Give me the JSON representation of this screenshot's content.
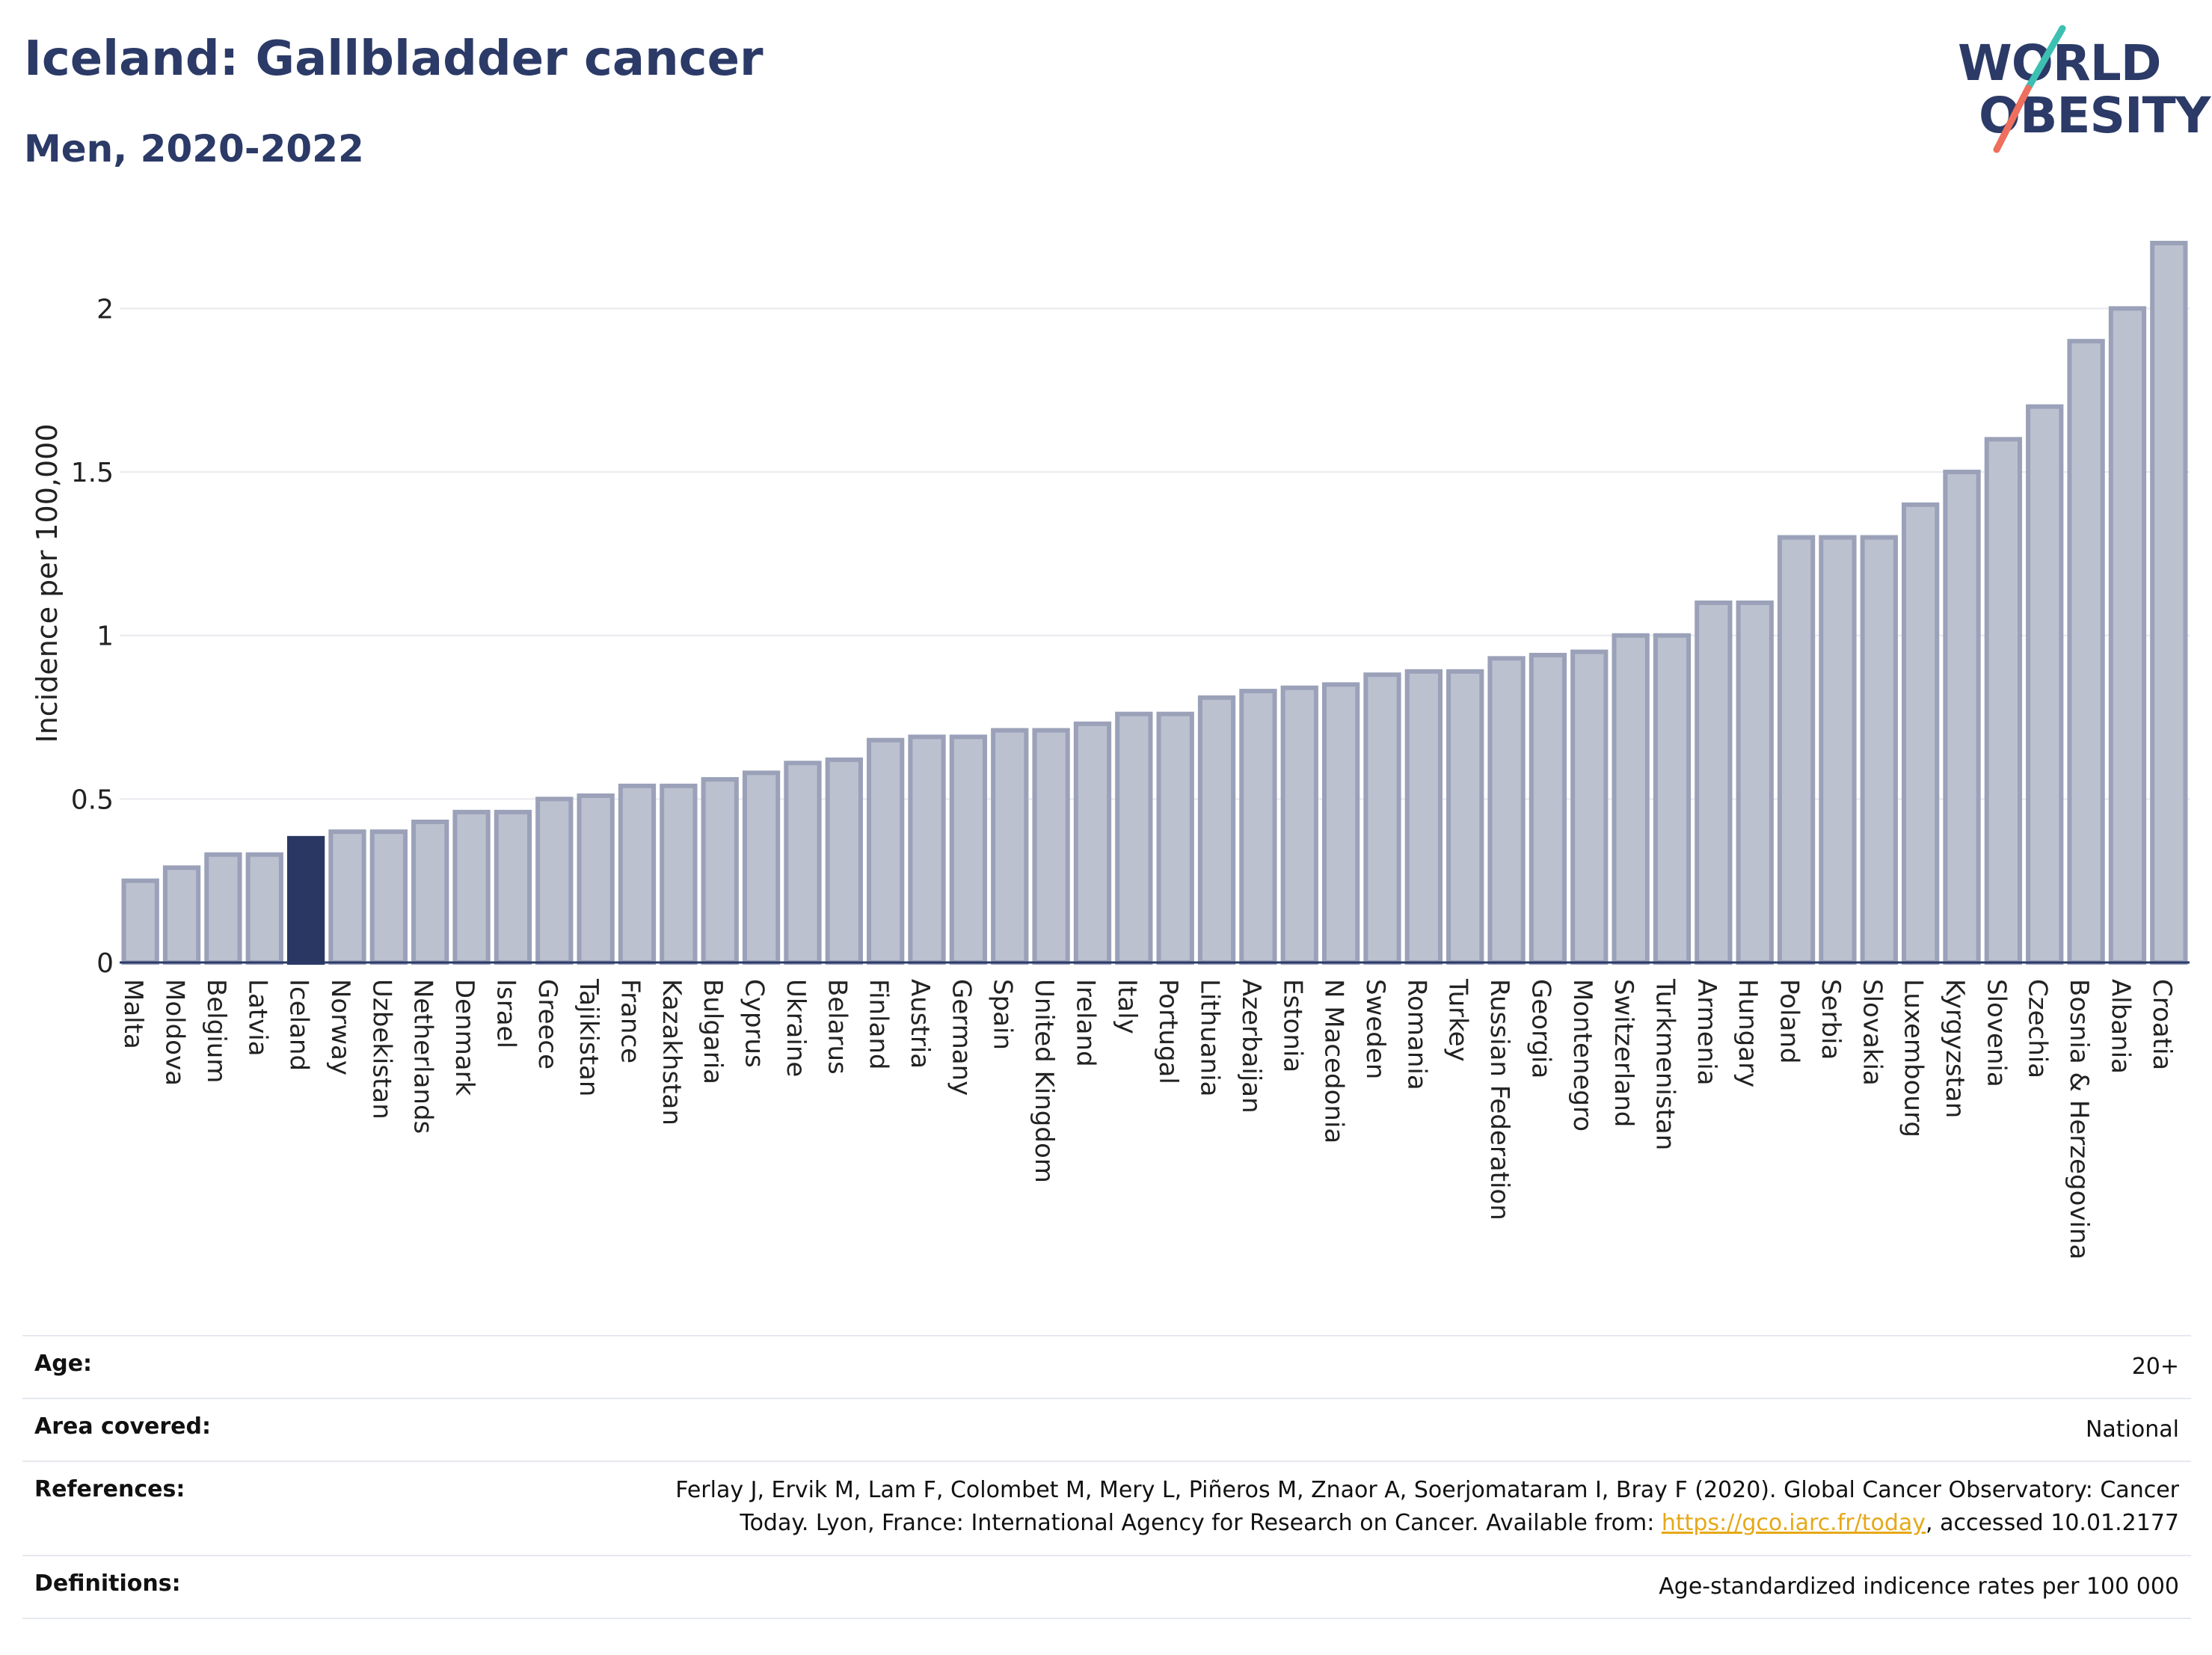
{
  "header": {
    "title": "Iceland: Gallbladder cancer",
    "subtitle": "Men, 2020-2022"
  },
  "logo": {
    "line1": "WORLD",
    "line2": "OBESITY"
  },
  "colors": {
    "bar": "#bcc1d0",
    "bar_border": "#9aa1b8",
    "highlight": "#2b3763",
    "logo_teal": "#3cc0b2",
    "logo_coral": "#ee6f5d",
    "link": "#e6a817"
  },
  "chart_data": {
    "type": "bar",
    "title": "Iceland: Gallbladder cancer",
    "subtitle": "Men, 2020-2022",
    "ylabel": "Incidence per 100,000",
    "xlabel": "",
    "ylim": [
      0,
      2.2
    ],
    "yticks": [
      0,
      0.5,
      1,
      1.5,
      2
    ],
    "ytick_labels": [
      "0",
      "0.5",
      "1",
      "1.5",
      "2"
    ],
    "grid": true,
    "highlight": "Iceland",
    "categories": [
      "Malta",
      "Moldova",
      "Belgium",
      "Latvia",
      "Iceland",
      "Norway",
      "Uzbekistan",
      "Netherlands",
      "Denmark",
      "Israel",
      "Greece",
      "Tajikistan",
      "France",
      "Kazakhstan",
      "Bulgaria",
      "Cyprus",
      "Ukraine",
      "Belarus",
      "Finland",
      "Austria",
      "Germany",
      "Spain",
      "United Kingdom",
      "Ireland",
      "Italy",
      "Portugal",
      "Lithuania",
      "Azerbaijan",
      "Estonia",
      "N Macedonia",
      "Sweden",
      "Romania",
      "Turkey",
      "Russian Federation",
      "Georgia",
      "Montenegro",
      "Switzerland",
      "Turkmenistan",
      "Armenia",
      "Hungary",
      "Poland",
      "Serbia",
      "Slovakia",
      "Luxembourg",
      "Kyrgyzstan",
      "Slovenia",
      "Czechia",
      "Bosnia & Herzegovina",
      "Albania",
      "Croatia"
    ],
    "values": [
      0.25,
      0.29,
      0.33,
      0.33,
      0.38,
      0.4,
      0.4,
      0.43,
      0.46,
      0.46,
      0.5,
      0.51,
      0.54,
      0.54,
      0.56,
      0.58,
      0.61,
      0.62,
      0.68,
      0.69,
      0.69,
      0.71,
      0.71,
      0.73,
      0.76,
      0.76,
      0.81,
      0.83,
      0.84,
      0.85,
      0.88,
      0.89,
      0.89,
      0.93,
      0.94,
      0.95,
      1.0,
      1.0,
      1.1,
      1.1,
      1.3,
      1.3,
      1.3,
      1.4,
      1.5,
      1.6,
      1.7,
      1.9,
      2.0,
      2.2
    ]
  },
  "meta": {
    "age": {
      "label": "Age:",
      "value": "20+"
    },
    "area": {
      "label": "Area covered:",
      "value": "National"
    },
    "references": {
      "label": "References:",
      "line1": "Ferlay J, Ervik M, Lam F, Colombet M, Mery L, Piñeros M, Znaor A, Soerjomataram I, Bray F (2020). Global Cancer Observatory: Cancer",
      "line2_pre": "Today. Lyon, France: International Agency for Research on Cancer. Available from: ",
      "link": "https://gco.iarc.fr/today",
      "line2_post": ", accessed 10.01.2177"
    },
    "definitions": {
      "label": "Definitions:",
      "value": "Age-standardized indicence rates per 100 000"
    }
  }
}
